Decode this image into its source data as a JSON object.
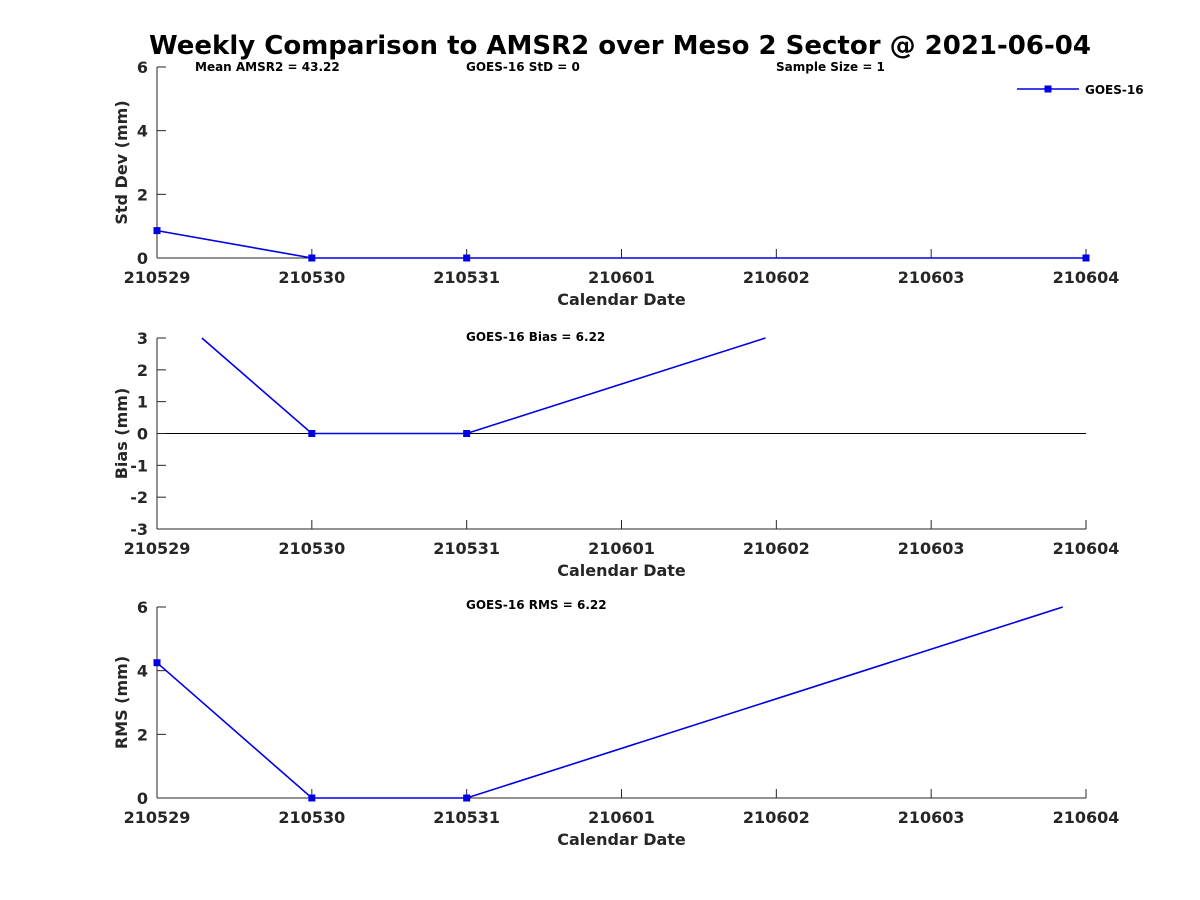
{
  "title": "Weekly Comparison to AMSR2 over Meso 2 Sector @ 2021-06-04",
  "colors": {
    "series": "#0000e6",
    "axis": "#262626",
    "zero_line": "#000000"
  },
  "legend": {
    "label": "GOES-16",
    "placement": "top-right"
  },
  "chart_data": [
    {
      "type": "line",
      "name": "std_dev",
      "xlabel": "Calendar Date",
      "ylabel": "Std Dev (mm)",
      "categories": [
        "210529",
        "210530",
        "210531",
        "210601",
        "210602",
        "210603",
        "210604"
      ],
      "ylim": [
        0,
        6
      ],
      "yticks": [
        "0",
        "2",
        "4",
        "6"
      ],
      "series": [
        {
          "name": "GOES-16",
          "points": [
            [
              0,
              0.86
            ],
            [
              1,
              0
            ],
            [
              2,
              0
            ],
            [
              6,
              0
            ]
          ],
          "markers": [
            0,
            1,
            2,
            3
          ]
        }
      ],
      "annotations": [
        "Mean AMSR2 = 43.22",
        "GOES-16 StD = 0",
        "Sample Size = 1"
      ]
    },
    {
      "type": "line",
      "name": "bias",
      "xlabel": "Calendar Date",
      "ylabel": "Bias (mm)",
      "categories": [
        "210529",
        "210530",
        "210531",
        "210601",
        "210602",
        "210603",
        "210604"
      ],
      "ylim": [
        -3,
        3
      ],
      "yticks": [
        "-3",
        "-2",
        "-1",
        "0",
        "1",
        "2",
        "3"
      ],
      "zero_line": true,
      "series": [
        {
          "name": "GOES-16",
          "points": [
            [
              0.29,
              3
            ],
            [
              1,
              0
            ],
            [
              2,
              0
            ],
            [
              3.93,
              3
            ]
          ],
          "markers": [
            1,
            2
          ]
        }
      ],
      "annotations": [
        "GOES-16 Bias  = 6.22"
      ]
    },
    {
      "type": "line",
      "name": "rms",
      "xlabel": "Calendar Date",
      "ylabel": "RMS (mm)",
      "categories": [
        "210529",
        "210530",
        "210531",
        "210601",
        "210602",
        "210603",
        "210604"
      ],
      "ylim": [
        0,
        6
      ],
      "yticks": [
        "0",
        "2",
        "4",
        "6"
      ],
      "series": [
        {
          "name": "GOES-16",
          "points": [
            [
              0,
              4.25
            ],
            [
              1,
              0
            ],
            [
              2,
              0
            ],
            [
              5.85,
              6
            ]
          ],
          "markers": [
            0,
            1,
            2
          ]
        }
      ],
      "annotations": [
        "GOES-16 RMS = 6.22"
      ]
    }
  ]
}
